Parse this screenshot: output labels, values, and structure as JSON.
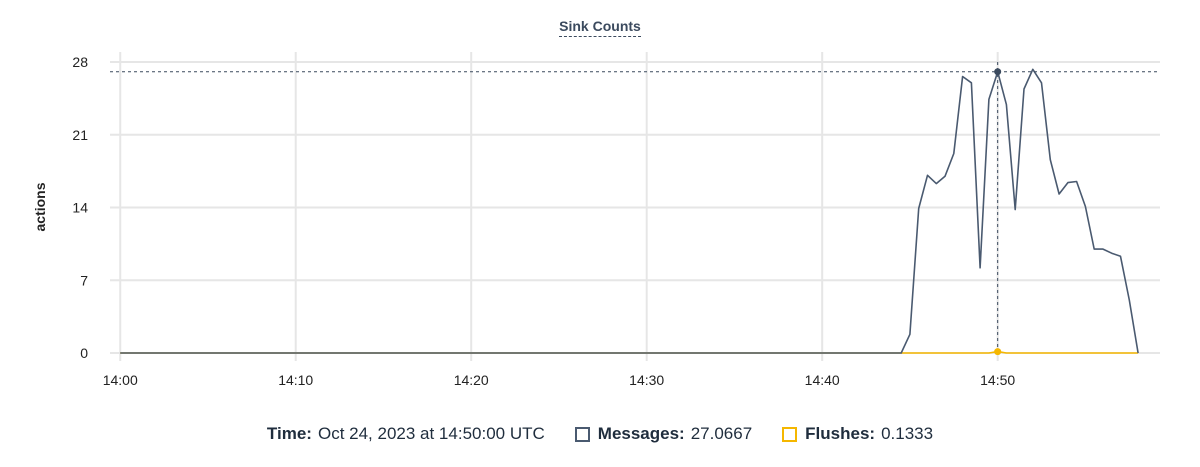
{
  "chart_data": {
    "type": "line",
    "title": "Sink Counts",
    "xlabel": "",
    "ylabel": "actions",
    "ylim": [
      0,
      28
    ],
    "yticks": [
      "0",
      "7",
      "14",
      "21",
      "28"
    ],
    "xticks": [
      "14:00",
      "14:10",
      "14:20",
      "14:30",
      "14:40",
      "14:50"
    ],
    "xlim": [
      "13:59:25",
      "14:59:15"
    ],
    "grid": true,
    "series": [
      {
        "name": "Messages",
        "color": "#4a5a70",
        "x": [
          "14:00:00",
          "14:44:30",
          "14:45:00",
          "14:45:30",
          "14:46:00",
          "14:46:30",
          "14:47:00",
          "14:47:30",
          "14:48:00",
          "14:48:30",
          "14:49:00",
          "14:49:30",
          "14:50:00",
          "14:50:30",
          "14:51:00",
          "14:51:30",
          "14:52:00",
          "14:52:30",
          "14:53:00",
          "14:53:30",
          "14:54:00",
          "14:54:30",
          "14:55:00",
          "14:55:30",
          "14:56:00",
          "14:56:30",
          "14:57:00",
          "14:57:30",
          "14:58:00"
        ],
        "values": [
          0,
          0,
          1.8,
          13.9,
          17.1,
          16.3,
          17.0,
          19.2,
          26.6,
          26.0,
          8.2,
          24.4,
          27.0667,
          23.9,
          13.8,
          25.4,
          27.3,
          26.0,
          18.6,
          15.3,
          16.4,
          16.5,
          14.1,
          10.0,
          10.0,
          9.6,
          9.3,
          5.1,
          0
        ]
      },
      {
        "name": "Flushes",
        "color": "#f5b700",
        "x": [
          "14:00:00",
          "14:49:30",
          "14:50:00",
          "14:50:30",
          "14:58:00"
        ],
        "values": [
          0,
          0,
          0.1333,
          0,
          0
        ]
      }
    ],
    "hover": {
      "x": "14:50:00"
    }
  },
  "legend": {
    "time_label": "Time:",
    "time_value": "Oct 24, 2023 at 14:50:00 UTC",
    "messages_label": "Messages:",
    "messages_value": "27.0667",
    "flushes_label": "Flushes:",
    "flushes_value": "0.1333"
  }
}
